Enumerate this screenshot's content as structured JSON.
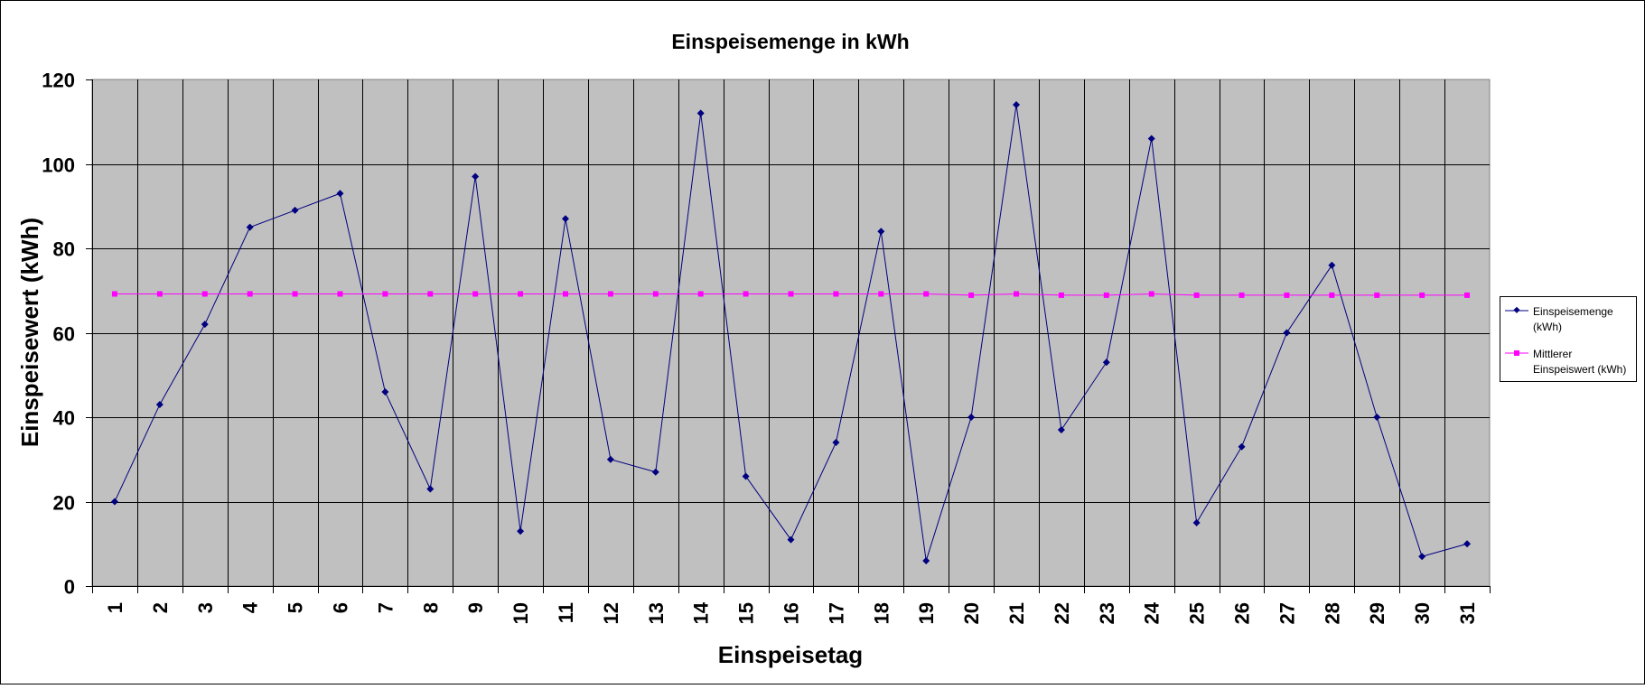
{
  "chart_data": {
    "type": "line",
    "title": "Einspeisemenge in kWh",
    "xlabel": "Einspeisetag",
    "ylabel": "Einspeisewert  (kWh)",
    "ylim": [
      0,
      120
    ],
    "yticks": [
      0,
      20,
      40,
      60,
      80,
      100,
      120
    ],
    "grid": true,
    "legend_position": "right",
    "categories": [
      "1",
      "2",
      "3",
      "4",
      "5",
      "6",
      "7",
      "8",
      "9",
      "10",
      "11",
      "12",
      "13",
      "14",
      "15",
      "16",
      "17",
      "18",
      "19",
      "20",
      "21",
      "22",
      "23",
      "24",
      "25",
      "26",
      "27",
      "28",
      "29",
      "30",
      "31"
    ],
    "series": [
      {
        "name": "Einspeisemenge (kWh)",
        "legend_lines": [
          "Einspeisemenge",
          "(kWh)"
        ],
        "color": "#000080",
        "marker": "diamond",
        "values": [
          20,
          43,
          62,
          85,
          89,
          93,
          46,
          23,
          97,
          13,
          87,
          30,
          27,
          112,
          26,
          11,
          34,
          84,
          6,
          40,
          114,
          37,
          53,
          106,
          15,
          33,
          60,
          76,
          40,
          7,
          10
        ]
      },
      {
        "name": "Mittlerer Einspeiswert (kWh)",
        "legend_lines": [
          "Mittlerer",
          "Einspeiswert (kWh)"
        ],
        "color": "#FF00FF",
        "marker": "square",
        "values": [
          69.2,
          69.2,
          69.2,
          69.2,
          69.2,
          69.2,
          69.2,
          69.2,
          69.2,
          69.2,
          69.2,
          69.2,
          69.2,
          69.2,
          69.2,
          69.2,
          69.2,
          69.2,
          69.2,
          68.9,
          69.2,
          68.9,
          68.9,
          69.2,
          68.9,
          68.9,
          68.9,
          68.9,
          68.9,
          68.9,
          68.9
        ]
      }
    ],
    "plot_background": "#C0C0C0"
  }
}
